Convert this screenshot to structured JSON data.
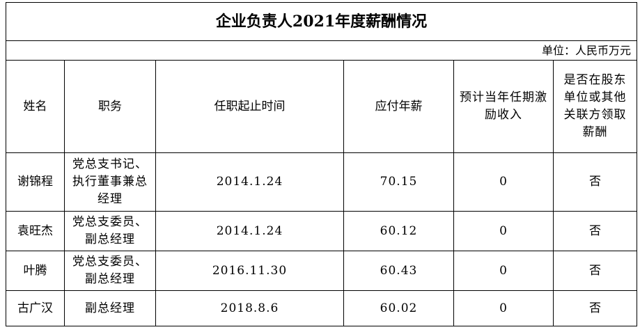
{
  "title": "企业负责人2021年度薪酬情况",
  "unit": "单位：人民币万元",
  "headers": {
    "name": "姓名",
    "position": "职务",
    "tenure": "任职起止时间",
    "salary": "应付年薪",
    "incentive": "预计当年任期激励收入",
    "other_pay": "是否在股东单位或其他关联方领取薪酬"
  },
  "rows": [
    {
      "name": "谢锦程",
      "position": "党总支书记、执行董事兼总经理",
      "tenure": "2014.1.24",
      "salary": "70.15",
      "incentive": "0",
      "other_pay": "否"
    },
    {
      "name": "袁旺杰",
      "position": "党总支委员、副总经理",
      "tenure": "2014.1.24",
      "salary": "60.12",
      "incentive": "0",
      "other_pay": "否"
    },
    {
      "name": "叶腾",
      "position": "党总支委员、副总经理",
      "tenure": "2016.11.30",
      "salary": "60.43",
      "incentive": "0",
      "other_pay": "否"
    },
    {
      "name": "古广汉",
      "position": "副总经理",
      "tenure": "2018.8.6",
      "salary": "60.02",
      "incentive": "0",
      "other_pay": "否"
    }
  ]
}
